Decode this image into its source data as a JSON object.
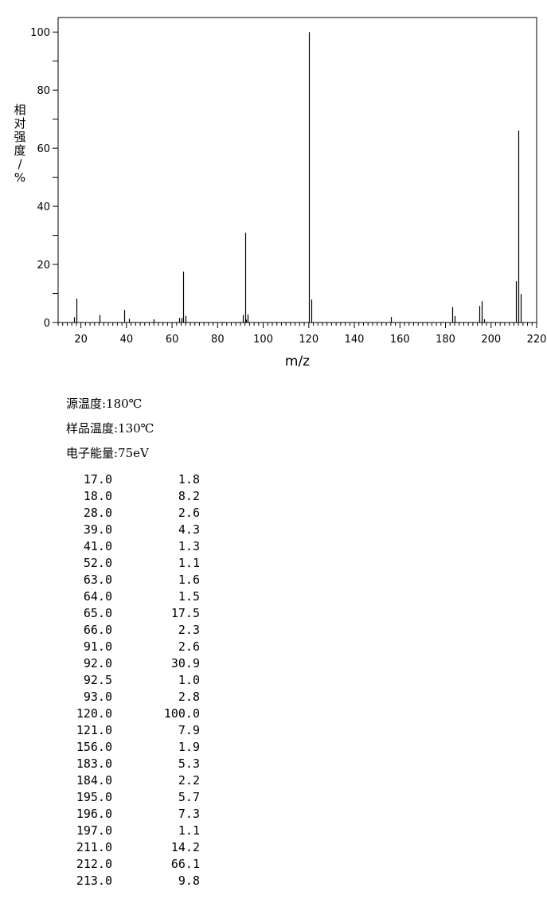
{
  "chart_data": {
    "type": "bar",
    "xlabel": "m/z",
    "ylabel": "相对强度/%",
    "xlim": [
      10,
      220
    ],
    "ylim": [
      0,
      105
    ],
    "x_ticks": [
      "20",
      "40",
      "60",
      "80",
      "100",
      "120",
      "140",
      "160",
      "180",
      "200",
      "220"
    ],
    "y_ticks": [
      "0",
      "20",
      "40",
      "60",
      "80",
      "100"
    ],
    "grid": false,
    "peaks": [
      {
        "mz": 17.0,
        "intensity": 1.8
      },
      {
        "mz": 18.0,
        "intensity": 8.2
      },
      {
        "mz": 28.0,
        "intensity": 2.6
      },
      {
        "mz": 39.0,
        "intensity": 4.3
      },
      {
        "mz": 41.0,
        "intensity": 1.3
      },
      {
        "mz": 52.0,
        "intensity": 1.1
      },
      {
        "mz": 63.0,
        "intensity": 1.6
      },
      {
        "mz": 64.0,
        "intensity": 1.5
      },
      {
        "mz": 65.0,
        "intensity": 17.5
      },
      {
        "mz": 66.0,
        "intensity": 2.3
      },
      {
        "mz": 91.0,
        "intensity": 2.6
      },
      {
        "mz": 92.0,
        "intensity": 30.9
      },
      {
        "mz": 92.5,
        "intensity": 1.0
      },
      {
        "mz": 93.0,
        "intensity": 2.8
      },
      {
        "mz": 120.0,
        "intensity": 100.0
      },
      {
        "mz": 121.0,
        "intensity": 7.9
      },
      {
        "mz": 156.0,
        "intensity": 1.9
      },
      {
        "mz": 183.0,
        "intensity": 5.3
      },
      {
        "mz": 184.0,
        "intensity": 2.2
      },
      {
        "mz": 195.0,
        "intensity": 5.7
      },
      {
        "mz": 196.0,
        "intensity": 7.3
      },
      {
        "mz": 197.0,
        "intensity": 1.1
      },
      {
        "mz": 211.0,
        "intensity": 14.2
      },
      {
        "mz": 212.0,
        "intensity": 66.1
      },
      {
        "mz": 213.0,
        "intensity": 9.8
      }
    ]
  },
  "conditions": {
    "source_temp": "源温度:180℃",
    "sample_temp": "样品温度:130℃",
    "electron_energy": "电子能量:75eV"
  },
  "table": [
    {
      "mz": "17.0",
      "intensity": "1.8"
    },
    {
      "mz": "18.0",
      "intensity": "8.2"
    },
    {
      "mz": "28.0",
      "intensity": "2.6"
    },
    {
      "mz": "39.0",
      "intensity": "4.3"
    },
    {
      "mz": "41.0",
      "intensity": "1.3"
    },
    {
      "mz": "52.0",
      "intensity": "1.1"
    },
    {
      "mz": "63.0",
      "intensity": "1.6"
    },
    {
      "mz": "64.0",
      "intensity": "1.5"
    },
    {
      "mz": "65.0",
      "intensity": "17.5"
    },
    {
      "mz": "66.0",
      "intensity": "2.3"
    },
    {
      "mz": "91.0",
      "intensity": "2.6"
    },
    {
      "mz": "92.0",
      "intensity": "30.9"
    },
    {
      "mz": "92.5",
      "intensity": "1.0"
    },
    {
      "mz": "93.0",
      "intensity": "2.8"
    },
    {
      "mz": "120.0",
      "intensity": "100.0"
    },
    {
      "mz": "121.0",
      "intensity": "7.9"
    },
    {
      "mz": "156.0",
      "intensity": "1.9"
    },
    {
      "mz": "183.0",
      "intensity": "5.3"
    },
    {
      "mz": "184.0",
      "intensity": "2.2"
    },
    {
      "mz": "195.0",
      "intensity": "5.7"
    },
    {
      "mz": "196.0",
      "intensity": "7.3"
    },
    {
      "mz": "197.0",
      "intensity": "1.1"
    },
    {
      "mz": "211.0",
      "intensity": "14.2"
    },
    {
      "mz": "212.0",
      "intensity": "66.1"
    },
    {
      "mz": "213.0",
      "intensity": "9.8"
    }
  ]
}
